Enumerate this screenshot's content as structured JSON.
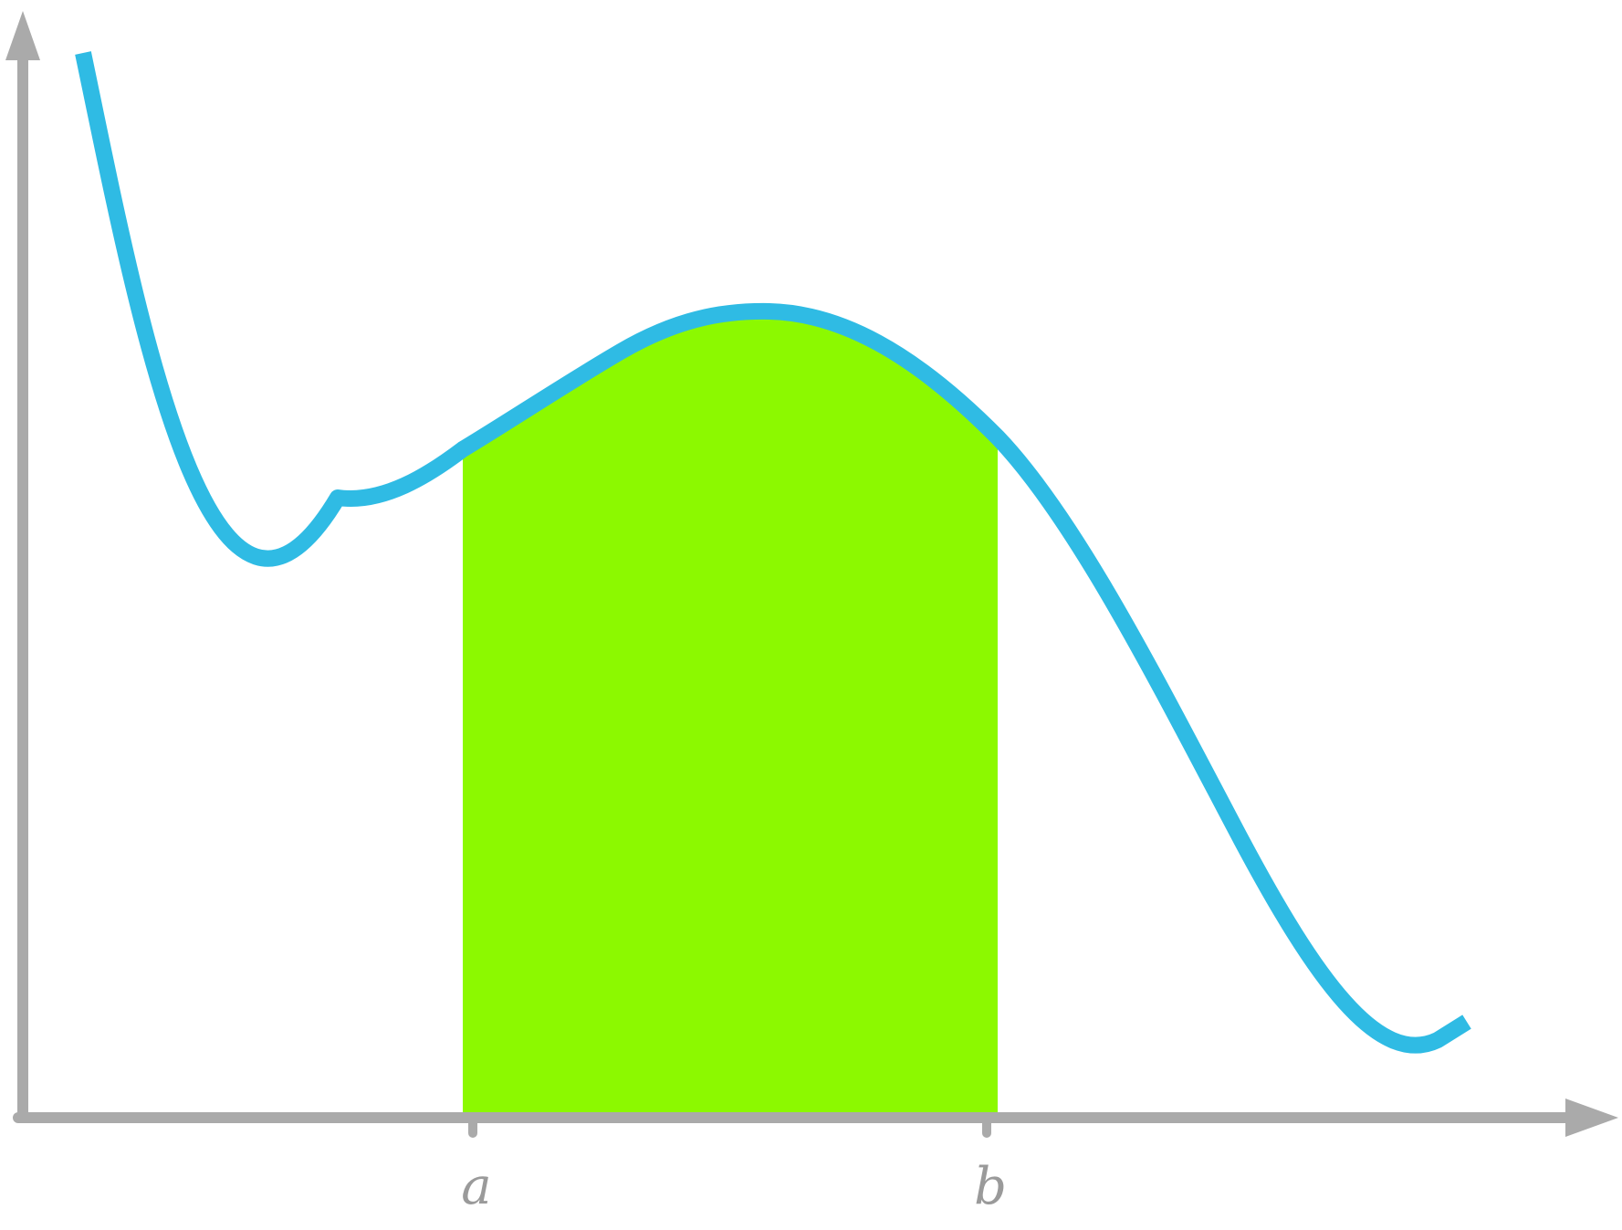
{
  "figure": {
    "colors": {
      "axis": "#aaaaaa",
      "curve": "#2fbbe4",
      "shaded_region": "#8cf900",
      "tick_label": "#9a9a9a"
    },
    "ticks": [
      {
        "id": "a",
        "label": "a"
      },
      {
        "id": "b",
        "label": "b"
      }
    ],
    "shaded_region": {
      "from_tick": "a",
      "to_tick": "b"
    }
  }
}
